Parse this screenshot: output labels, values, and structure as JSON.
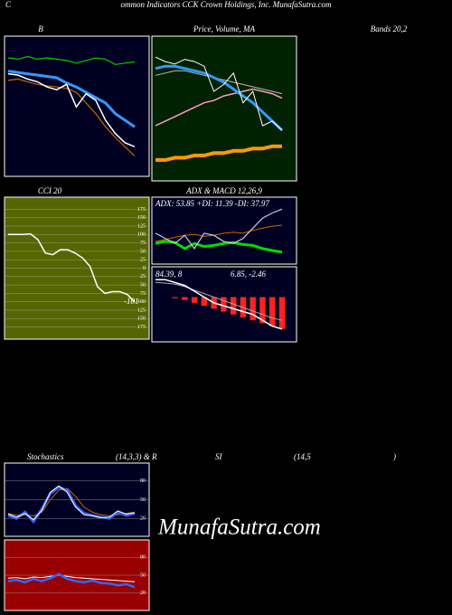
{
  "header": {
    "initial": "C",
    "title": "ommon Indicators CCK Crown Holdings, Inc. MunafaSutra.com",
    "watermark": "MunafaSutra.com",
    "lower_titles": [
      "Stochastics",
      "(14,3,3) & R",
      "SI",
      "(14,5",
      ")"
    ]
  },
  "chart_data": [
    {
      "type": "line",
      "title": "B",
      "title_suffix": "Bands 20,2",
      "series": [
        {
          "name": "upper",
          "color": "#00cc00",
          "width": 1.2,
          "values": [
            122,
            121,
            123,
            121,
            122,
            121,
            120,
            118,
            120,
            122,
            121,
            117,
            118,
            119
          ]
        },
        {
          "name": "middle",
          "color": "#3399ff",
          "width": 3,
          "values": [
            112,
            111,
            110,
            109,
            108,
            107,
            103,
            100,
            96,
            92,
            88,
            80,
            75,
            70
          ]
        },
        {
          "name": "lower",
          "color": "#cc6600",
          "width": 1.2,
          "values": [
            105,
            106,
            104,
            102,
            101,
            100,
            99,
            96,
            88,
            80,
            70,
            62,
            55,
            48
          ]
        },
        {
          "name": "price",
          "color": "#ffffff",
          "width": 1.5,
          "values": [
            110,
            109,
            106,
            104,
            100,
            98,
            102,
            85,
            95,
            90,
            75,
            65,
            58,
            55
          ]
        }
      ]
    },
    {
      "type": "line",
      "title": "Price, Volume, MA",
      "series": [
        {
          "name": "ma-long",
          "color": "#ff9900",
          "width": 4,
          "values": [
            55,
            55,
            56,
            56,
            57,
            57,
            58,
            58,
            59,
            59,
            60,
            60,
            61,
            61
          ]
        },
        {
          "name": "ma-pink",
          "color": "#ff99cc",
          "width": 1.5,
          "values": [
            70,
            72,
            74,
            76,
            78,
            80,
            81,
            83,
            84,
            85,
            86,
            85,
            84,
            82
          ]
        },
        {
          "name": "ma-gray",
          "color": "#bbbbbb",
          "width": 1,
          "values": [
            92,
            93,
            94,
            94,
            93,
            92,
            91,
            90,
            89,
            88,
            87,
            86,
            85,
            84
          ]
        },
        {
          "name": "ma-short",
          "color": "#3399ff",
          "width": 3,
          "values": [
            95,
            96,
            96,
            95,
            94,
            93,
            91,
            89,
            86,
            83,
            80,
            76,
            72,
            68
          ]
        },
        {
          "name": "price",
          "color": "#ffffff",
          "width": 1,
          "values": [
            100,
            98,
            97,
            99,
            98,
            96,
            85,
            88,
            93,
            80,
            85,
            70,
            72,
            68
          ]
        }
      ]
    },
    {
      "type": "line",
      "title": "CCI 20",
      "ylim": [
        -195,
        195
      ],
      "yticks": [
        175,
        150,
        125,
        100,
        75,
        50,
        25,
        0,
        {
          "value": -25,
          "label": "25"
        },
        {
          "value": -50,
          "label": "50"
        },
        {
          "value": -75,
          "label": "75"
        },
        {
          "value": -100,
          "label": "100"
        },
        {
          "value": -125,
          "label": "125"
        },
        {
          "value": -150,
          "label": "150"
        },
        {
          "value": -175,
          "label": "175"
        }
      ],
      "series": [
        {
          "name": "cci",
          "color": "#ffffff",
          "width": 1.5,
          "values": [
            100,
            100,
            100,
            102,
            85,
            45,
            40,
            55,
            55,
            45,
            30,
            5,
            -55,
            -75,
            -70,
            -70,
            -78,
            -101
          ]
        }
      ],
      "last_label": "-101"
    },
    {
      "type": "line",
      "title": "ADX  & MACD 12,26,9",
      "stats": "ADX: 53.85  +DI: 11.39 -DI: 37.97",
      "series": [
        {
          "name": "plus-di",
          "color": "#00dd00",
          "width": 3,
          "values": [
            20,
            22,
            21,
            15,
            20,
            17,
            18,
            20,
            21,
            19,
            18,
            15,
            13,
            11.39
          ]
        },
        {
          "name": "minus-di",
          "color": "#cc6600",
          "width": 1,
          "values": [
            22,
            24,
            26,
            28,
            29,
            27,
            28,
            30,
            31,
            30,
            33,
            35,
            37,
            37.97
          ]
        },
        {
          "name": "adx",
          "color": "#ccccdd",
          "width": 1.2,
          "values": [
            30,
            25,
            20,
            28,
            15,
            30,
            28,
            22,
            20,
            25,
            35,
            45,
            50,
            53.85
          ]
        }
      ]
    },
    {
      "type": "line",
      "annotations": [
        "84.39, 8",
        "6.85, -2.46"
      ],
      "series": [
        {
          "name": "histogram",
          "color": "#ff2222",
          "style": "bar",
          "values": [
            0,
            0,
            -0.2,
            -0.5,
            -1,
            -1.5,
            -2,
            -2.5,
            -3,
            -3.5,
            -4,
            -4.5,
            -5,
            -5.5
          ]
        },
        {
          "name": "signal",
          "color": "#aaaaaa",
          "width": 1,
          "values": [
            2.5,
            2.4,
            2.2,
            1.8,
            1.2,
            0.6,
            0,
            -0.6,
            -1.2,
            -1.8,
            -2.4,
            -3,
            -3.6,
            -4
          ]
        },
        {
          "name": "macd",
          "color": "#ffffff",
          "width": 1.5,
          "values": [
            3,
            3,
            2.5,
            2,
            1,
            0,
            -1,
            -1.5,
            -2,
            -2.5,
            -3,
            -4,
            -5,
            -5.5
          ]
        }
      ]
    },
    {
      "type": "line",
      "ylim": [
        0,
        100
      ],
      "yticks": [
        80,
        50,
        20
      ],
      "series": [
        {
          "name": "d",
          "color": "#cc6600",
          "width": 1,
          "values": [
            28,
            25,
            26,
            24,
            30,
            50,
            65,
            68,
            55,
            38,
            30,
            26,
            24,
            26,
            28,
            30
          ]
        },
        {
          "name": "k",
          "color": "#3366ff",
          "width": 3,
          "values": [
            25,
            20,
            30,
            15,
            35,
            60,
            70,
            65,
            40,
            28,
            25,
            22,
            20,
            30,
            25,
            28
          ]
        },
        {
          "name": "k-fast",
          "color": "#ffffff",
          "width": 1,
          "values": [
            27,
            22,
            28,
            18,
            33,
            62,
            72,
            62,
            38,
            26,
            24,
            21,
            22,
            32,
            27,
            29
          ]
        }
      ]
    },
    {
      "type": "line",
      "ylim": [
        0,
        100
      ],
      "yticks": [
        80,
        50,
        20
      ],
      "series": [
        {
          "name": "rsi-avg",
          "color": "#ffffff",
          "width": 1,
          "values": [
            45,
            46,
            44,
            47,
            46,
            48,
            50,
            48,
            46,
            45,
            44,
            43,
            42,
            41,
            40,
            39
          ]
        },
        {
          "name": "rsi",
          "color": "#3366ff",
          "width": 2.5,
          "values": [
            40,
            42,
            38,
            44,
            40,
            45,
            52,
            44,
            40,
            38,
            41,
            37,
            36,
            33,
            35,
            30
          ]
        }
      ]
    }
  ]
}
